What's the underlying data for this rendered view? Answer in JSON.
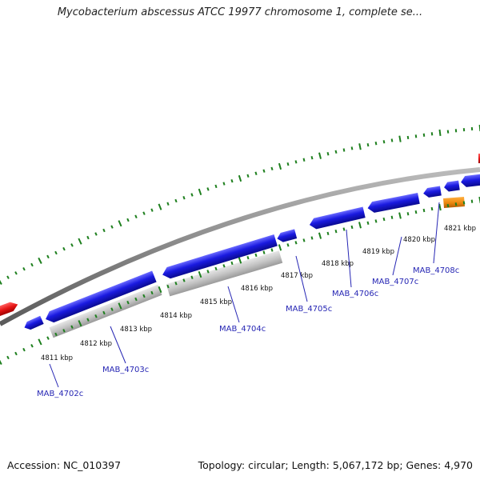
{
  "title": "Mycobacterium abscessus ATCC 19977 chromosome 1, complete se...",
  "footer": {
    "accession": "Accession: NC_010397",
    "stats": "Topology: circular; Length: 5,067,172 bp; Genes: 4,970"
  },
  "colors": {
    "cds": "#1a1ae0",
    "gene": "#c4c4c4",
    "rna": "#e61515",
    "other": "#ee8a10",
    "backbone": "#888888",
    "ticks": "#1d7f1d",
    "label": "#2626b4"
  },
  "scale": {
    "labels": [
      {
        "name": "kbp-4811",
        "text": "4811 kbp"
      },
      {
        "name": "kbp-4812",
        "text": "4812 kbp"
      },
      {
        "name": "kbp-4813",
        "text": "4813 kbp"
      },
      {
        "name": "kbp-4814",
        "text": "4814 kbp"
      },
      {
        "name": "kbp-4815",
        "text": "4815 kbp"
      },
      {
        "name": "kbp-4816",
        "text": "4816 kbp"
      },
      {
        "name": "kbp-4817",
        "text": "4817 kbp"
      },
      {
        "name": "kbp-4818",
        "text": "4818 kbp"
      },
      {
        "name": "kbp-4819",
        "text": "4819 kbp"
      },
      {
        "name": "kbp-4820",
        "text": "4820 kbp"
      },
      {
        "name": "kbp-4821",
        "text": "4821 kbp"
      }
    ]
  },
  "genes": [
    {
      "name": "gene-MAB_4702c",
      "text": "MAB_4702c"
    },
    {
      "name": "gene-MAB_4703c",
      "text": "MAB_4703c"
    },
    {
      "name": "gene-MAB_4704c",
      "text": "MAB_4704c"
    },
    {
      "name": "gene-MAB_4705c",
      "text": "MAB_4705c"
    },
    {
      "name": "gene-MAB_4706c",
      "text": "MAB_4706c"
    },
    {
      "name": "gene-MAB_4707c",
      "text": "MAB_4707c"
    },
    {
      "name": "gene-MAB_4708c",
      "text": "MAB_4708c"
    }
  ]
}
